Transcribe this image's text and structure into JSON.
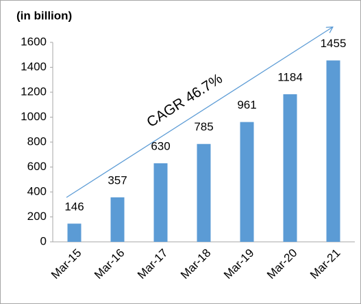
{
  "chart_data": {
    "type": "bar",
    "title": "(in billion)",
    "categories": [
      "Mar-15",
      "Mar-16",
      "Mar-17",
      "Mar-18",
      "Mar-19",
      "Mar-20",
      "Mar-21"
    ],
    "values": [
      146,
      357,
      630,
      785,
      961,
      1184,
      1455
    ],
    "color": "#5b9bd5",
    "ylim": [
      0,
      1600
    ],
    "yticks": [
      0,
      200,
      400,
      600,
      800,
      1000,
      1200,
      1400,
      1600
    ],
    "grid": false,
    "annotation": "CAGR 46.7%"
  }
}
